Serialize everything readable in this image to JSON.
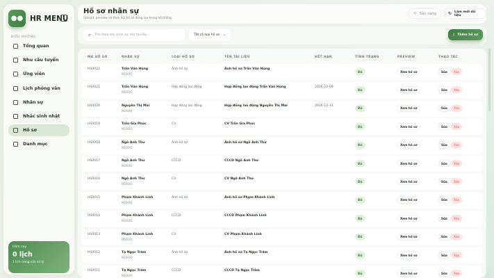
{
  "sidebar": {
    "brand": "HR MENU",
    "section": "ĐIỀU HƯỚNG",
    "items": [
      {
        "label": "Tổng quan",
        "icon": "dashboard-icon"
      },
      {
        "label": "Nhu cầu tuyển",
        "icon": "briefcase-icon"
      },
      {
        "label": "Ứng viên",
        "icon": "users-icon"
      },
      {
        "label": "Lịch phỏng vấn",
        "icon": "calendar-icon"
      },
      {
        "label": "Nhân sự",
        "icon": "id-card-icon"
      },
      {
        "label": "Nhắc sinh nhật",
        "icon": "cake-icon"
      },
      {
        "label": "Hồ sơ",
        "icon": "folder-icon",
        "active": true
      },
      {
        "label": "Danh mục",
        "icon": "grid-icon"
      }
    ],
    "today": {
      "label": "Hôm nay",
      "value": "0 lịch",
      "sub": "1 lịch trống cần xử lý"
    }
  },
  "header": {
    "title": "Hồ sơ nhân sự",
    "subtitle": "Upload, preview và theo dõi hồ sơ đang lưu trong hệ thống.",
    "status": "Sẵn sàng",
    "refresh": "Làm mới dữ liệu"
  },
  "filter": {
    "search_placeholder": "Tìm theo mã nhân sự, tên tài liệu...",
    "type_select": "Tất cả loại hồ sơ",
    "add_button": "Thêm hồ sơ"
  },
  "table": {
    "headers": [
      "MÃ HỒ SƠ",
      "NHÂN SỰ",
      "LOẠI HỒ SƠ",
      "TÊN TÀI LIỆU",
      "HẾT HẠN",
      "TÌNH TRẠNG",
      "PREVIEW",
      "THAO TÁC"
    ],
    "view_label": "Xem hồ sơ",
    "edit_label": "Sửa",
    "delete_label": "Xóa",
    "rows": [
      {
        "id": "HS0022",
        "name": "Trần Văn Hùng",
        "code": "NS0005",
        "type": "Ảnh hồ sơ",
        "doc": "Ảnh hồ sơ Trần Văn Hùng",
        "expiry": "",
        "status": "Đủ"
      },
      {
        "id": "HS0021",
        "name": "Trần Văn Hùng",
        "code": "NS0005",
        "type": "Hợp đồng lao động",
        "doc": "Hợp đồng lao động Trần Văn Hùng",
        "expiry": "2026-10-09",
        "status": "Đủ"
      },
      {
        "id": "HS0020",
        "name": "Nguyễn Thị Mai",
        "code": "NS0004",
        "type": "Hợp đồng lao động",
        "doc": "Hợp đồng lao động Nguyễn Thị Mai",
        "expiry": "2026-12-31",
        "status": "Đủ"
      },
      {
        "id": "HS0019",
        "name": "Trần Gia Phúc",
        "code": "NS0003",
        "type": "CV",
        "doc": "CV Trần Gia Phúc",
        "expiry": "",
        "status": "Đủ"
      },
      {
        "id": "HS0018",
        "name": "Ngô Anh Thư",
        "code": "NS0002",
        "type": "Ảnh hồ sơ",
        "doc": "Ảnh hồ sơ Ngô Anh Thư",
        "expiry": "",
        "status": "Đủ"
      },
      {
        "id": "HS0017",
        "name": "Ngô Anh Thư",
        "code": "NS0002",
        "type": "CCCD",
        "doc": "CCCD Ngô Anh Thư",
        "expiry": "",
        "status": "Đủ"
      },
      {
        "id": "HS0016",
        "name": "Ngô Anh Thư",
        "code": "NS0002",
        "type": "CV",
        "doc": "CV Ngô Anh Thư",
        "expiry": "",
        "status": "Đủ"
      },
      {
        "id": "HS0015",
        "name": "Phạm Khánh Linh",
        "code": "NS0001",
        "type": "Ảnh hồ sơ",
        "doc": "Ảnh hồ sơ Phạm Khánh Linh",
        "expiry": "",
        "status": "Đủ"
      },
      {
        "id": "HS0014",
        "name": "Phạm Khánh Linh",
        "code": "NS0001",
        "type": "CCCD",
        "doc": "CCCD Phạm Khánh Linh",
        "expiry": "",
        "status": "Đủ"
      },
      {
        "id": "HS0013",
        "name": "Phạm Khánh Linh",
        "code": "NS0001",
        "type": "CV",
        "doc": "CV Phạm Khánh Linh",
        "expiry": "",
        "status": "Đủ"
      },
      {
        "id": "HS0012",
        "name": "Tạ Ngọc Trâm",
        "code": "NS0009",
        "type": "Ảnh hồ sơ",
        "doc": "Ảnh hồ sơ Tạ Ngọc Trâm",
        "expiry": "",
        "status": "Đủ"
      },
      {
        "id": "HS0011",
        "name": "Tạ Ngọc Trâm",
        "code": "NS0009",
        "type": "CCCD",
        "doc": "CCCD Tạ Ngọc Trâm",
        "expiry": "",
        "status": "Đủ"
      }
    ]
  },
  "colors": {
    "accent": "#4e8c50",
    "active_nav": "#dbe8d5",
    "status_bg": "#e3efdf",
    "delete_bg": "#fbe3e3",
    "delete_text": "#d9534f"
  }
}
